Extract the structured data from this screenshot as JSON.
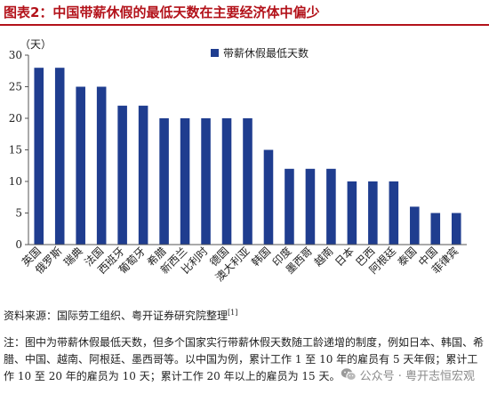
{
  "title": "图表2：中国带薪休假的最低天数在主要经济体中偏少",
  "colors": {
    "title": "#b3121a",
    "bar": "#1f3d8f",
    "axis": "#555555"
  },
  "source": {
    "text": "资料来源：国际劳工组织、粤开证券研究院整理",
    "ref": "[1]"
  },
  "note": "注：图中为带薪休假最低天数，但多个国家实行带薪休假天数随工龄递增的制度，例如日本、韩国、希腊、中国、越南、阿根廷、墨西哥等。以中国为例，累计工作 1 至 10 年的雇员有 5 天年假；累计工作 10 至 20 年的雇员为 10 天；累计工作 20 年以上的雇员为 15 天。",
  "watermark": {
    "text": "公众号 · 粤开志恒宏观",
    "icon": "wechat-icon"
  },
  "chart_data": {
    "type": "bar",
    "title": "",
    "ylabel": "（天）",
    "xlabel": "",
    "ylim": [
      0,
      30
    ],
    "yticks": [
      0,
      5,
      10,
      15,
      20,
      25,
      30
    ],
    "grid": false,
    "legend_position": "top-right",
    "categories": [
      "英国",
      "俄罗斯",
      "瑞典",
      "法国",
      "西班牙",
      "葡萄牙",
      "希腊",
      "新西兰",
      "比利时",
      "德国",
      "澳大利亚",
      "韩国",
      "印度",
      "墨西哥",
      "越南",
      "日本",
      "巴西",
      "阿根廷",
      "泰国",
      "中国",
      "菲律宾"
    ],
    "series": [
      {
        "name": "带薪休假最低天数",
        "values": [
          28,
          28,
          25,
          25,
          22,
          22,
          20,
          20,
          20,
          20,
          20,
          15,
          12,
          12,
          12,
          10,
          10,
          10,
          6,
          5,
          5
        ]
      }
    ]
  }
}
